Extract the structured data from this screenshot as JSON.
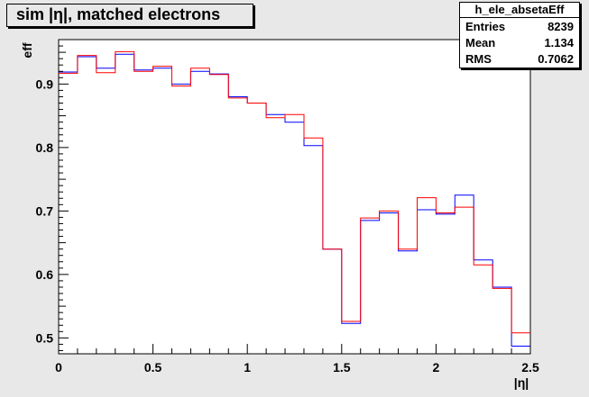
{
  "title": "sim |η|, matched electrons",
  "stats": {
    "name": "h_ele_absetaEff",
    "rows": [
      {
        "label": "Entries",
        "value": "8239"
      },
      {
        "label": "Mean",
        "value": "1.134"
      },
      {
        "label": "RMS",
        "value": "0.7062"
      }
    ]
  },
  "chart_data": {
    "type": "line",
    "xlabel": "|η|",
    "ylabel": "eff",
    "xlim": [
      0,
      2.5
    ],
    "ylim": [
      0.475,
      0.97
    ],
    "x_ticks": [
      "0",
      "0.5",
      "1",
      "1.5",
      "2",
      "2.5"
    ],
    "y_ticks": [
      "0.5",
      "0.6",
      "0.7",
      "0.8",
      "0.9"
    ],
    "bin_edges": [
      0,
      0.1,
      0.2,
      0.3,
      0.4,
      0.5,
      0.6,
      0.7,
      0.8,
      0.9,
      1.0,
      1.1,
      1.2,
      1.3,
      1.4,
      1.5,
      1.6,
      1.7,
      1.8,
      1.9,
      2.0,
      2.1,
      2.2,
      2.3,
      2.4,
      2.5
    ],
    "series": [
      {
        "color": "#0000ff",
        "values": [
          0.919,
          0.943,
          0.925,
          0.947,
          0.922,
          0.925,
          0.9,
          0.92,
          0.916,
          0.88,
          0.87,
          0.852,
          0.84,
          0.803,
          0.64,
          0.523,
          0.685,
          0.697,
          0.637,
          0.702,
          0.695,
          0.725,
          0.623,
          0.58,
          0.487
        ]
      },
      {
        "color": "#ff0000",
        "values": [
          0.917,
          0.945,
          0.918,
          0.951,
          0.92,
          0.928,
          0.897,
          0.925,
          0.915,
          0.878,
          0.87,
          0.847,
          0.852,
          0.815,
          0.64,
          0.526,
          0.689,
          0.7,
          0.64,
          0.721,
          0.697,
          0.706,
          0.615,
          0.578,
          0.508
        ]
      }
    ]
  }
}
